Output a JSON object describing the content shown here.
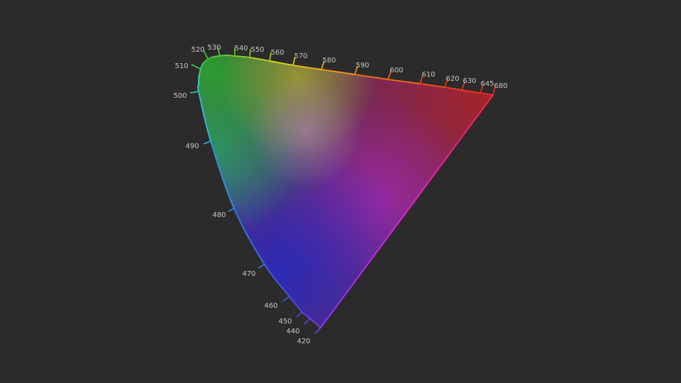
{
  "colors": {
    "background": "#2b2b2b",
    "label": "#c4c4c4"
  },
  "diagram": {
    "type": "cie-chromaticity-locus",
    "wavelengths": [
      {
        "label": "420",
        "color": "#7a3fe0"
      },
      {
        "label": "440",
        "color": "#5c3fe6"
      },
      {
        "label": "450",
        "color": "#4a46ea"
      },
      {
        "label": "460",
        "color": "#3a5af0"
      },
      {
        "label": "470",
        "color": "#2f73f2"
      },
      {
        "label": "480",
        "color": "#2f8ee8"
      },
      {
        "label": "490",
        "color": "#2fb6d6"
      },
      {
        "label": "500",
        "color": "#32d6a6"
      },
      {
        "label": "510",
        "color": "#34d05a"
      },
      {
        "label": "520",
        "color": "#3acb38"
      },
      {
        "label": "530",
        "color": "#4cc832"
      },
      {
        "label": "540",
        "color": "#6bc82e"
      },
      {
        "label": "550",
        "color": "#8cc82a"
      },
      {
        "label": "560",
        "color": "#b4cc26"
      },
      {
        "label": "570",
        "color": "#d8d020"
      },
      {
        "label": "580",
        "color": "#e6b41e"
      },
      {
        "label": "590",
        "color": "#ec961e"
      },
      {
        "label": "600",
        "color": "#ee6a20"
      },
      {
        "label": "610",
        "color": "#ee4a22"
      },
      {
        "label": "620",
        "color": "#ec3a24"
      },
      {
        "label": "630",
        "color": "#ea3226"
      },
      {
        "label": "645",
        "color": "#e82c2a"
      },
      {
        "label": "680",
        "color": "#e62a2e"
      }
    ]
  }
}
